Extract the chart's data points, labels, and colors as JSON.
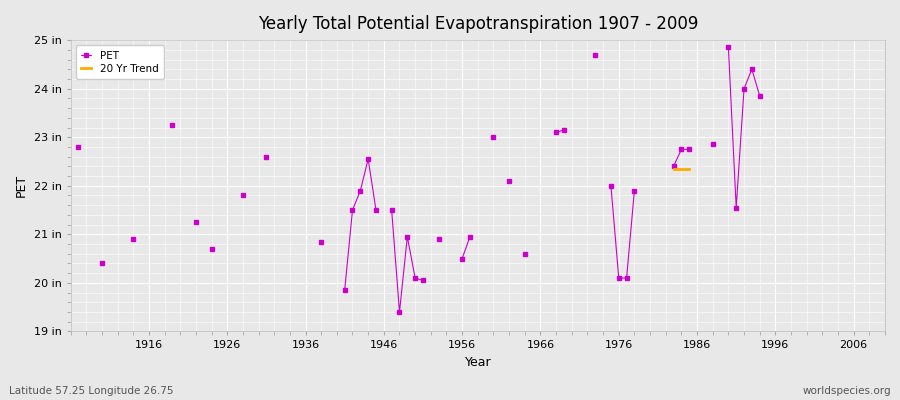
{
  "title": "Yearly Total Potential Evapotranspiration 1907 - 2009",
  "xlabel": "Year",
  "ylabel": "PET",
  "subtitle_left": "Latitude 57.25 Longitude 26.75",
  "subtitle_right": "worldspecies.org",
  "ylim": [
    19,
    25
  ],
  "xlim": [
    1906,
    2010
  ],
  "ytick_labels": [
    "19 in",
    "20 in",
    "21 in",
    "22 in",
    "23 in",
    "24 in",
    "25 in"
  ],
  "ytick_values": [
    19,
    20,
    21,
    22,
    23,
    24,
    25
  ],
  "xtick_values": [
    1916,
    1926,
    1936,
    1946,
    1956,
    1966,
    1976,
    1986,
    1996,
    2006
  ],
  "background_color": "#e8e8e8",
  "plot_bg_color": "#e8e8e8",
  "grid_color": "#ffffff",
  "pet_color": "#cc00cc",
  "trend_color": "#ffaa00",
  "pet_data": [
    [
      1907,
      22.8
    ],
    [
      1910,
      20.4
    ],
    [
      1914,
      20.9
    ],
    [
      1919,
      23.25
    ],
    [
      1922,
      21.25
    ],
    [
      1924,
      20.7
    ],
    [
      1928,
      21.8
    ],
    [
      1931,
      22.6
    ],
    [
      1938,
      20.85
    ],
    [
      1941,
      19.85
    ],
    [
      1942,
      21.5
    ],
    [
      1943,
      21.9
    ],
    [
      1944,
      22.55
    ],
    [
      1945,
      21.5
    ],
    [
      1947,
      21.5
    ],
    [
      1948,
      19.4
    ],
    [
      1949,
      20.95
    ],
    [
      1950,
      20.1
    ],
    [
      1951,
      20.05
    ],
    [
      1953,
      20.9
    ],
    [
      1956,
      20.5
    ],
    [
      1957,
      20.95
    ],
    [
      1960,
      23.0
    ],
    [
      1962,
      22.1
    ],
    [
      1964,
      20.6
    ],
    [
      1968,
      23.1
    ],
    [
      1969,
      23.15
    ],
    [
      1973,
      24.7
    ],
    [
      1975,
      22.0
    ],
    [
      1976,
      20.1
    ],
    [
      1977,
      20.1
    ],
    [
      1978,
      21.9
    ],
    [
      1983,
      22.4
    ],
    [
      1984,
      22.75
    ],
    [
      1985,
      22.75
    ],
    [
      1988,
      22.85
    ],
    [
      1990,
      24.85
    ],
    [
      1991,
      21.55
    ],
    [
      1992,
      24.0
    ],
    [
      1993,
      24.4
    ],
    [
      1994,
      23.85
    ]
  ],
  "trend_data": [
    [
      1983,
      22.35
    ],
    [
      1985,
      22.35
    ]
  ]
}
